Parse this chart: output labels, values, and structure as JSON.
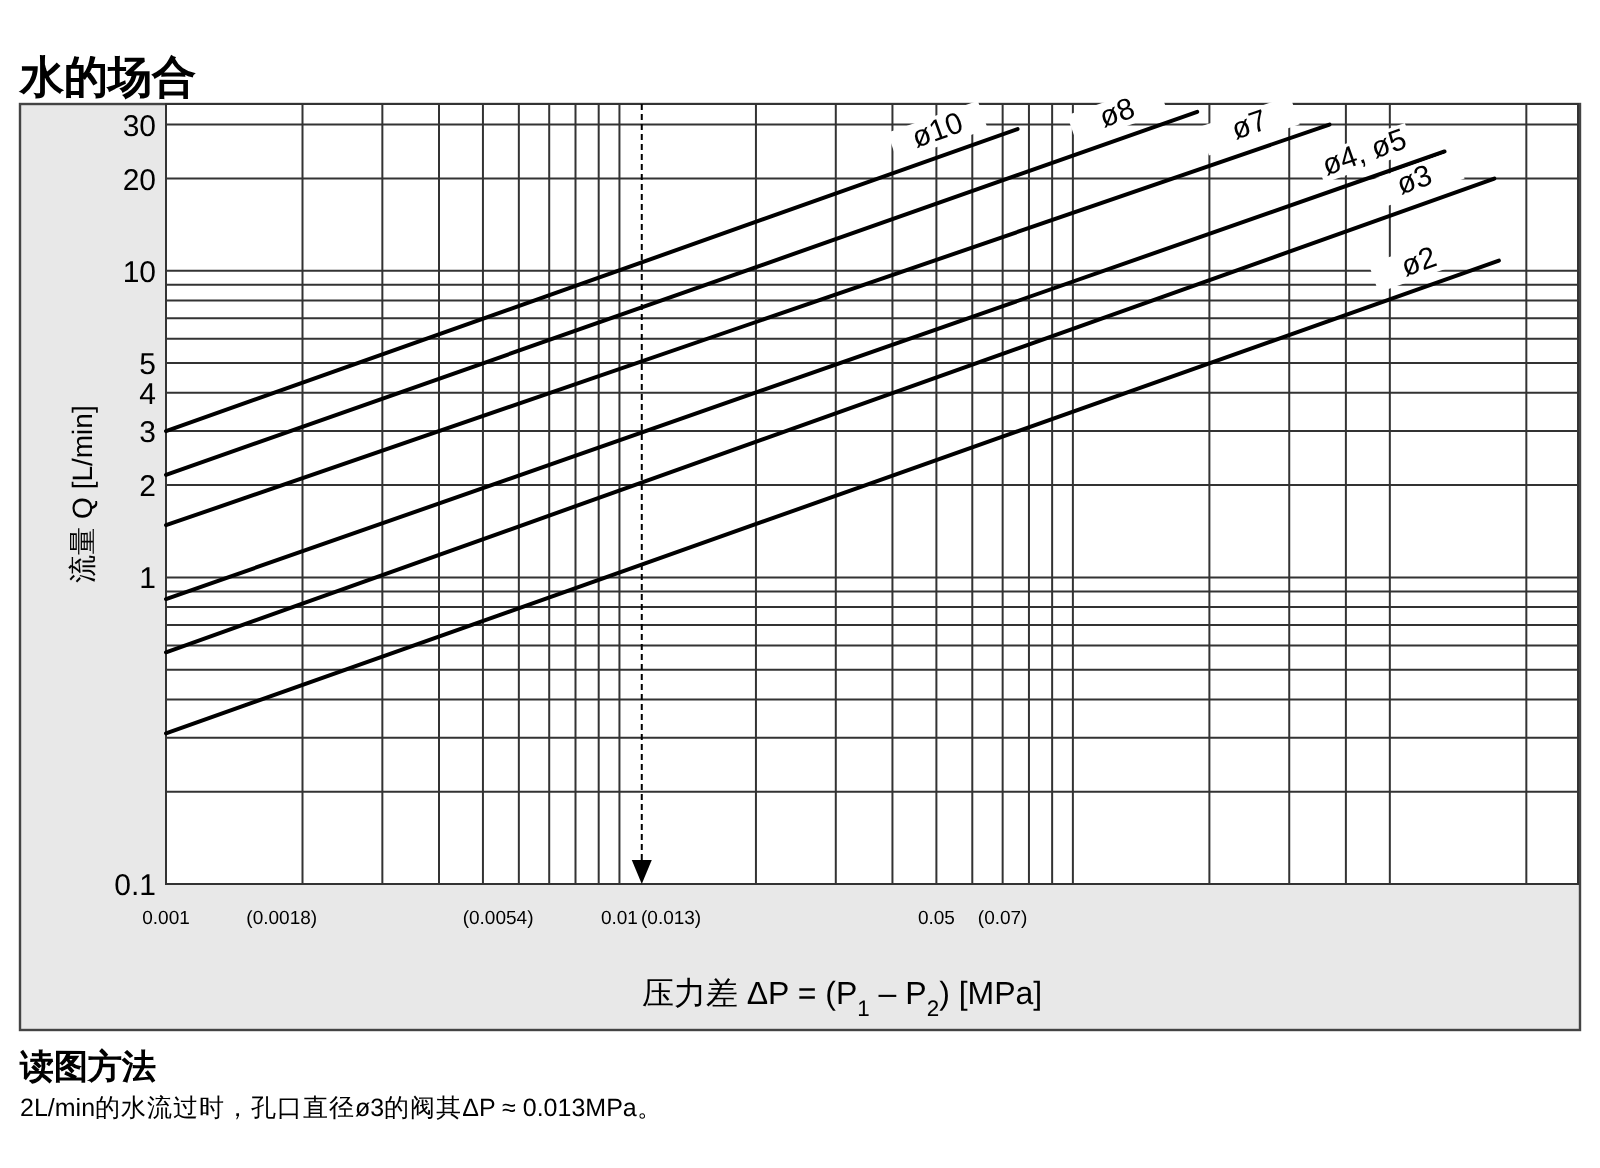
{
  "chart_data": {
    "type": "line",
    "title": "水的场合",
    "xlabel": "压力差 ΔP = (P$_{1}$ – P$_{2}$) [MPa]",
    "ylabel": "流量 Q [L/min]",
    "log": "xy",
    "grid": true,
    "xlim": [
      0.001,
      1.3
    ],
    "ylim": [
      0.1,
      35
    ],
    "xticks": [
      0.001,
      {
        "value": 0.0018,
        "label": "(0.0018)"
      },
      {
        "value": 0.002,
        "label": null
      },
      {
        "value": 0.003,
        "label": null
      },
      {
        "value": 0.004,
        "label": null
      },
      {
        "value": 0.005,
        "label": null
      },
      {
        "value": 0.0054,
        "label": "(0.0054)"
      },
      {
        "value": 0.006,
        "label": null
      },
      {
        "value": 0.007,
        "label": null
      },
      {
        "value": 0.008,
        "label": null
      },
      {
        "value": 0.009,
        "label": null
      },
      0.01,
      {
        "value": 0.013,
        "label": "(0.013)"
      },
      {
        "value": 0.02,
        "label": null
      },
      {
        "value": 0.03,
        "label": null
      },
      {
        "value": 0.04,
        "label": null
      },
      0.05,
      {
        "value": 0.07,
        "label": "(0.07)"
      },
      {
        "value": 0.06,
        "label": null
      },
      {
        "value": 0.07,
        "label": null
      },
      {
        "value": 0.08,
        "label": null
      },
      {
        "value": 0.09,
        "label": null
      },
      {
        "value": 0.1,
        "label": null
      },
      {
        "value": 0.2,
        "label": null
      },
      {
        "value": 0.3,
        "label": null
      },
      {
        "value": 0.4,
        "label": null
      },
      {
        "value": 0.5,
        "label": null
      },
      {
        "value": 1,
        "label": null
      }
    ],
    "yticks": [
      0.1,
      {
        "value": 0.2,
        "label": null
      },
      {
        "value": 0.3,
        "label": null
      },
      {
        "value": 0.4,
        "label": null
      },
      {
        "value": 0.5,
        "label": null
      },
      {
        "value": 0.6,
        "label": null
      },
      {
        "value": 0.7,
        "label": null
      },
      {
        "value": 0.8,
        "label": null
      },
      {
        "value": 0.9,
        "label": null
      },
      1,
      2,
      3,
      4,
      5,
      {
        "value": 6,
        "label": null
      },
      {
        "value": 7,
        "label": null
      },
      {
        "value": 8,
        "label": null
      },
      {
        "value": 9,
        "label": null
      },
      10,
      20,
      30
    ],
    "series": [
      {
        "name": "ø10",
        "color": "#000000",
        "x": [
          0.001,
          0.0755
        ],
        "values": [
          3.0,
          29
        ]
      },
      {
        "name": "ø8",
        "color": "#000000",
        "x": [
          0.001,
          0.188
        ],
        "values": [
          2.16,
          33
        ]
      },
      {
        "name": "ø7",
        "color": "#000000",
        "x": [
          0.001,
          0.368
        ],
        "values": [
          1.48,
          30
        ]
      },
      {
        "name": "ø4, ø5",
        "color": "#000000",
        "x": [
          0.001,
          0.66
        ],
        "values": [
          0.85,
          24.5
        ]
      },
      {
        "name": "ø3",
        "color": "#000000",
        "x": [
          0.001,
          0.85
        ],
        "values": [
          0.57,
          20
        ]
      },
      {
        "name": "ø2",
        "color": "#000000",
        "x": [
          0.001,
          0.87
        ],
        "values": [
          0.31,
          10.8
        ]
      }
    ],
    "annotations": [
      "读图方法",
      "2L/min的水流过时，孔口直径ø3的阀其ΔP ≈ 0.013MPa。"
    ],
    "ref_lines": [
      {
        "axis": "x",
        "value": 0.0112,
        "line_style": "dashed",
        "color": "#000000"
      }
    ]
  }
}
